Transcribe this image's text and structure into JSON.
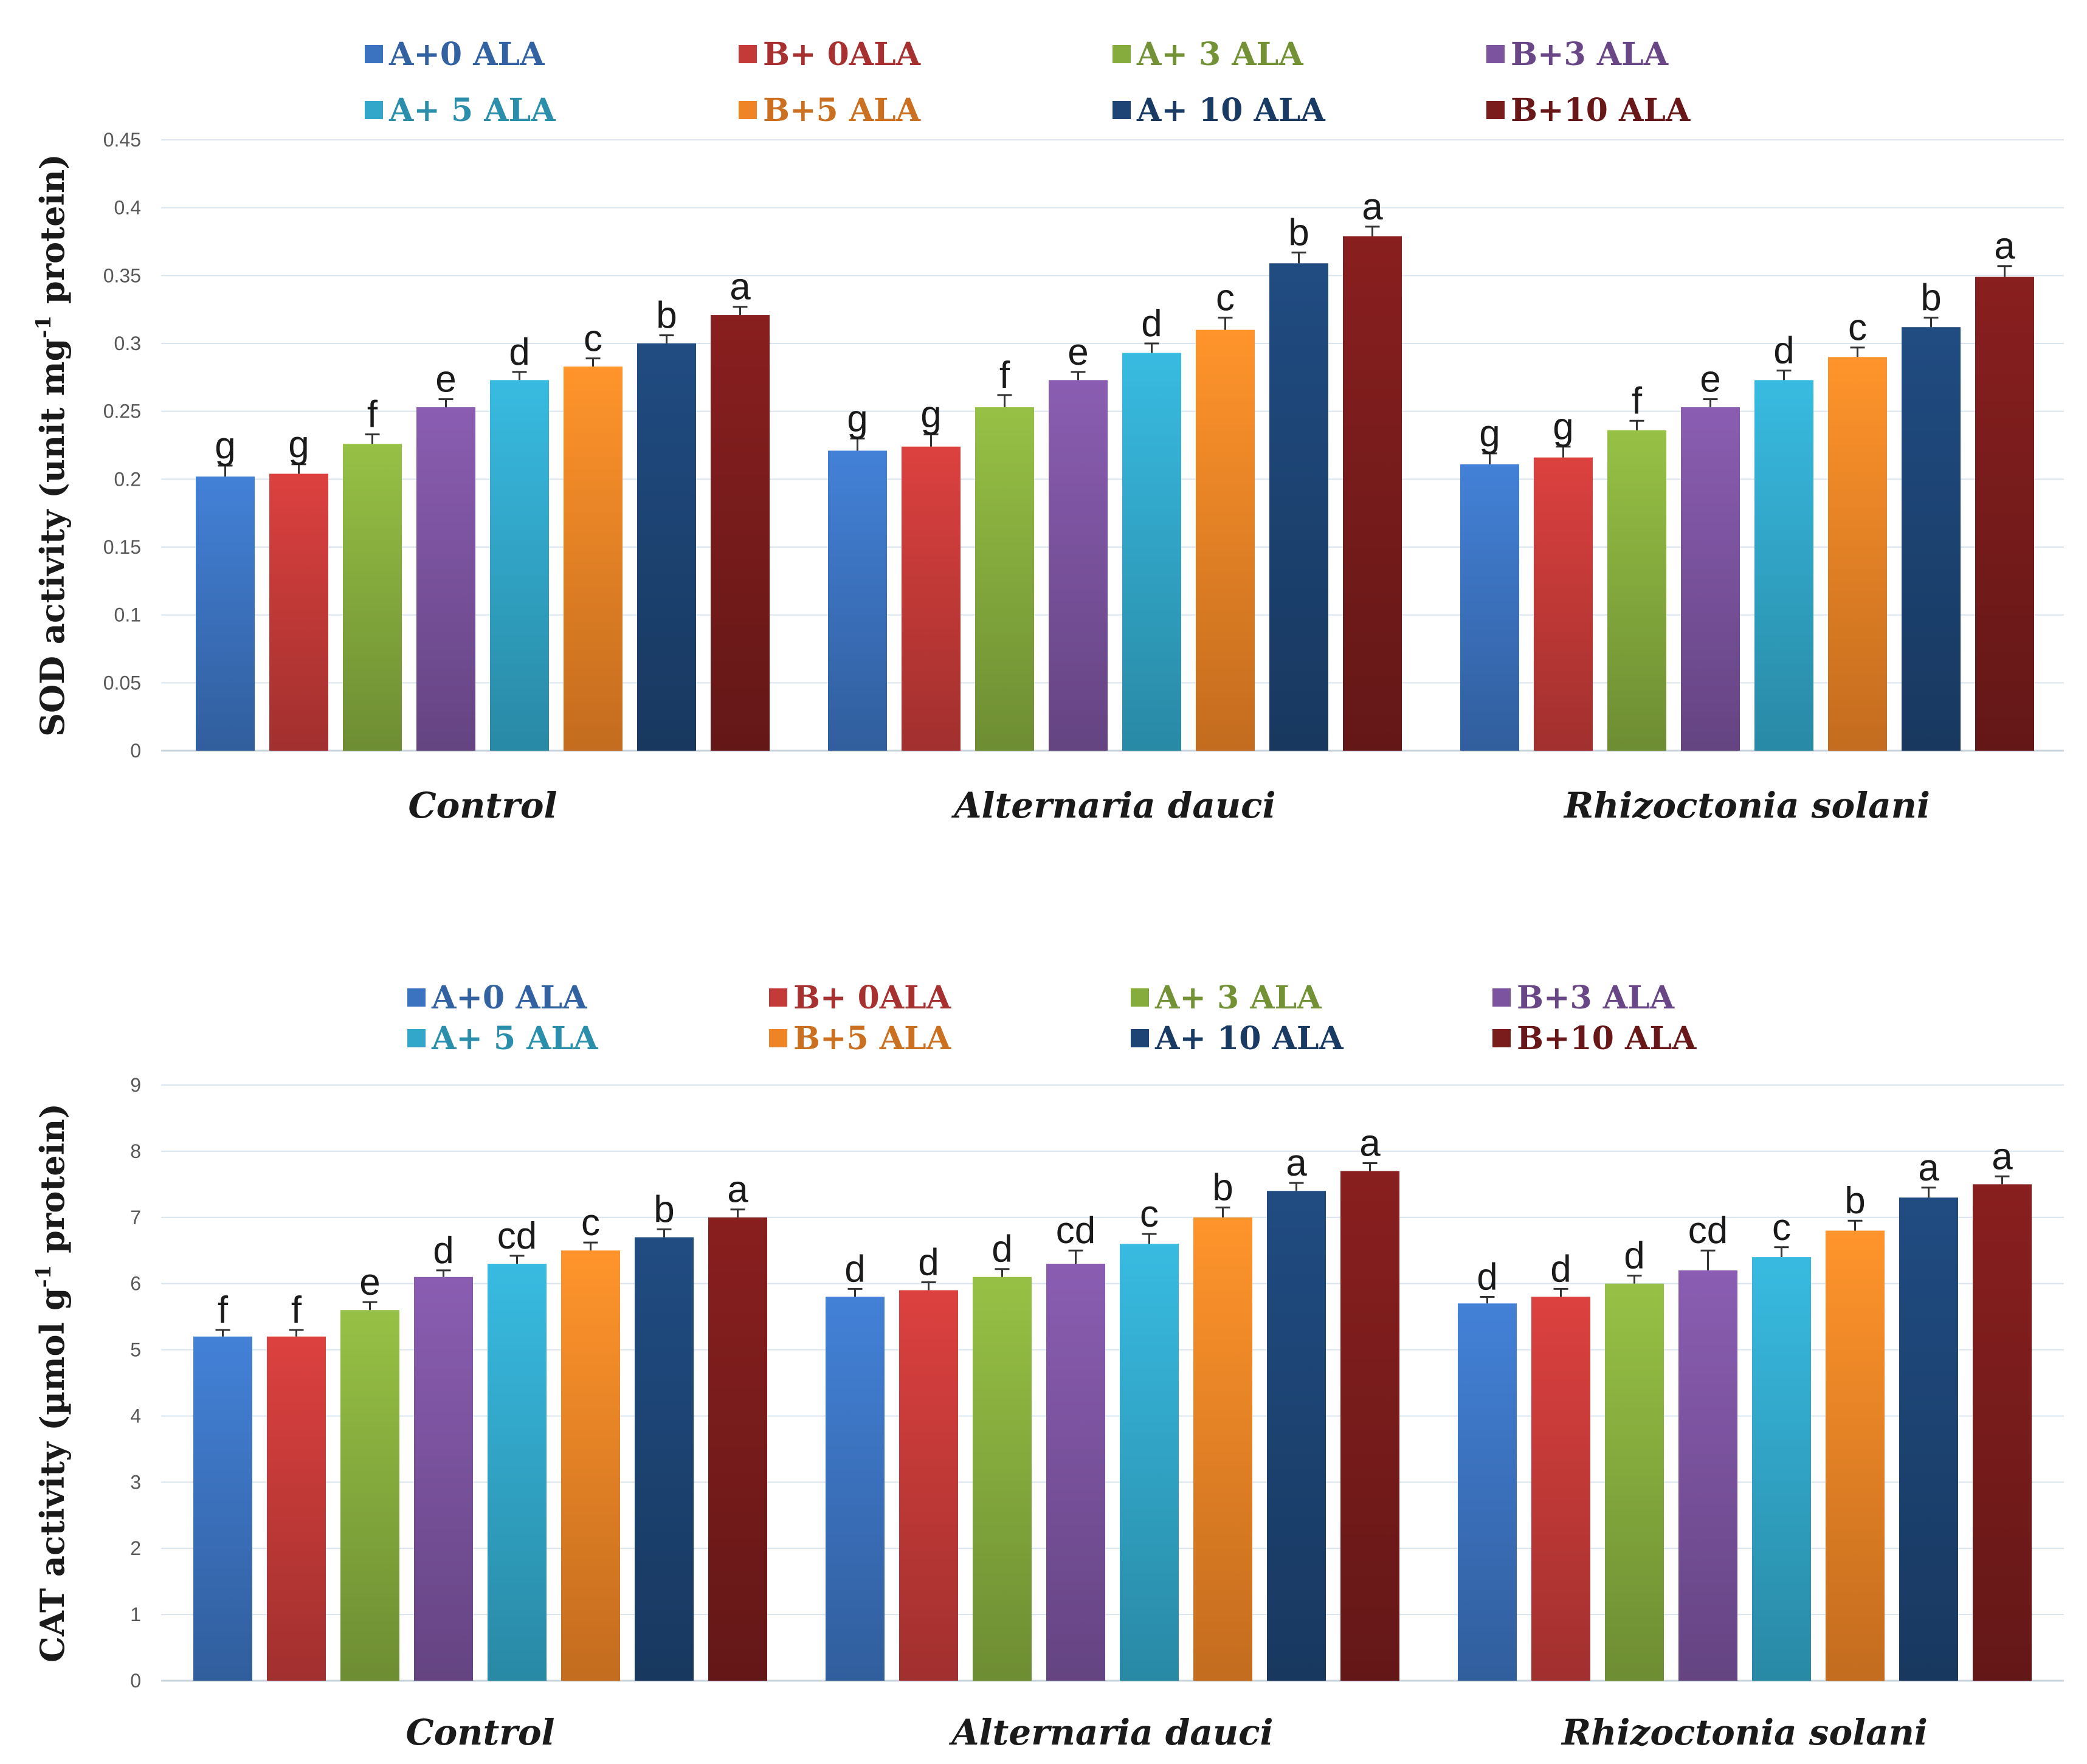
{
  "series_colors": [
    "#3c73c0",
    "#c43a38",
    "#86ac3e",
    "#7b539f",
    "#32a7c9",
    "#ee8426",
    "#1d4474",
    "#7a1c1c"
  ],
  "chart_data": [
    {
      "type": "bar",
      "ylabel_prefix": "SOD activity (unit mg",
      "ylabel_sup": "-1",
      "ylabel_suffix": " protein)",
      "ylim": [
        0,
        0.45
      ],
      "yticks": [
        "0",
        "0.05",
        "0.1",
        "0.15",
        "0.2",
        "0.25",
        "0.3",
        "0.35",
        "0.4",
        "0.45"
      ],
      "grid": true,
      "categories": [
        "Control",
        "Alternaria dauci",
        "Rhizoctonia  solani"
      ],
      "series": [
        {
          "name": "A+0 ALA",
          "values": [
            0.202,
            0.221,
            0.211
          ],
          "errors": [
            0.008,
            0.009,
            0.008
          ],
          "letters": [
            "g",
            "g",
            "g"
          ]
        },
        {
          "name": "B+ 0ALA",
          "values": [
            0.204,
            0.224,
            0.216
          ],
          "errors": [
            0.007,
            0.009,
            0.008
          ],
          "letters": [
            "g",
            "g",
            "g"
          ]
        },
        {
          "name": "A+ 3 ALA",
          "values": [
            0.226,
            0.253,
            0.236
          ],
          "errors": [
            0.007,
            0.009,
            0.007
          ],
          "letters": [
            "f",
            "f",
            "f"
          ]
        },
        {
          "name": "B+3 ALA",
          "values": [
            0.253,
            0.273,
            0.253
          ],
          "errors": [
            0.006,
            0.006,
            0.006
          ],
          "letters": [
            "e",
            "e",
            "e"
          ]
        },
        {
          "name": "A+ 5 ALA",
          "values": [
            0.273,
            0.293,
            0.273
          ],
          "errors": [
            0.006,
            0.007,
            0.007
          ],
          "letters": [
            "d",
            "d",
            "d"
          ]
        },
        {
          "name": "B+5 ALA",
          "values": [
            0.283,
            0.31,
            0.29
          ],
          "errors": [
            0.006,
            0.009,
            0.007
          ],
          "letters": [
            "c",
            "c",
            "c"
          ]
        },
        {
          "name": "A+ 10 ALA",
          "values": [
            0.3,
            0.359,
            0.312
          ],
          "errors": [
            0.006,
            0.008,
            0.007
          ],
          "letters": [
            "b",
            "b",
            "b"
          ]
        },
        {
          "name": "B+10 ALA",
          "values": [
            0.321,
            0.379,
            0.349
          ],
          "errors": [
            0.006,
            0.007,
            0.008
          ],
          "letters": [
            "a",
            "a",
            "a"
          ]
        }
      ]
    },
    {
      "type": "bar",
      "ylabel_prefix": "CAT activity (µmol g",
      "ylabel_sup": "-1",
      "ylabel_suffix": " protein)",
      "ylim": [
        0,
        9
      ],
      "yticks": [
        "0",
        "1",
        "2",
        "3",
        "4",
        "5",
        "6",
        "7",
        "8",
        "9"
      ],
      "grid": true,
      "categories": [
        "Control",
        "Alternaria dauci",
        "Rhizoctonia  solani"
      ],
      "series": [
        {
          "name": "A+0 ALA",
          "values": [
            5.2,
            5.8,
            5.7
          ],
          "errors": [
            0.1,
            0.12,
            0.1
          ],
          "letters": [
            "f",
            "d",
            "d"
          ]
        },
        {
          "name": "B+ 0ALA",
          "values": [
            5.2,
            5.9,
            5.8
          ],
          "errors": [
            0.1,
            0.12,
            0.12
          ],
          "letters": [
            "f",
            "d",
            "d"
          ]
        },
        {
          "name": "A+ 3 ALA",
          "values": [
            5.6,
            6.1,
            6.0
          ],
          "errors": [
            0.12,
            0.12,
            0.12
          ],
          "letters": [
            "e",
            "d",
            "d"
          ]
        },
        {
          "name": "B+3 ALA",
          "values": [
            6.1,
            6.3,
            6.2
          ],
          "errors": [
            0.1,
            0.2,
            0.3
          ],
          "letters": [
            "d",
            "cd",
            "cd"
          ]
        },
        {
          "name": "A+ 5 ALA",
          "values": [
            6.3,
            6.6,
            6.4
          ],
          "errors": [
            0.12,
            0.15,
            0.15
          ],
          "letters": [
            "cd",
            "c",
            "c"
          ]
        },
        {
          "name": "B+5 ALA",
          "values": [
            6.5,
            7.0,
            6.8
          ],
          "errors": [
            0.12,
            0.15,
            0.15
          ],
          "letters": [
            "c",
            "b",
            "b"
          ]
        },
        {
          "name": "A+ 10 ALA",
          "values": [
            6.7,
            7.4,
            7.3
          ],
          "errors": [
            0.12,
            0.12,
            0.15
          ],
          "letters": [
            "b",
            "a",
            "a"
          ]
        },
        {
          "name": "B+10 ALA",
          "values": [
            7.0,
            7.7,
            7.5
          ],
          "errors": [
            0.12,
            0.12,
            0.12
          ],
          "letters": [
            "a",
            "a",
            "a"
          ]
        }
      ]
    }
  ]
}
